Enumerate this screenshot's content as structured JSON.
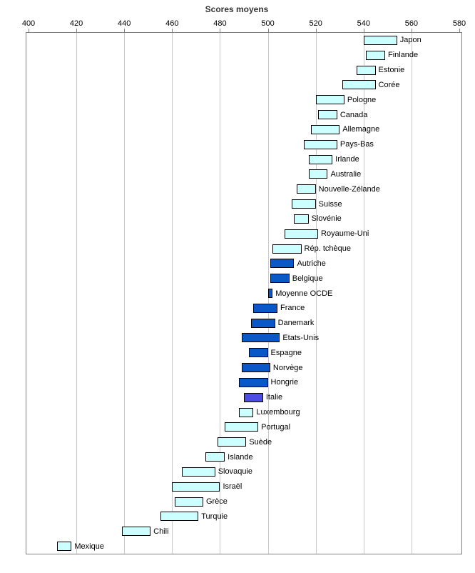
{
  "chart_data": {
    "type": "bar",
    "orientation": "horizontal-range",
    "title": "Scores moyens",
    "axis": {
      "position": "top",
      "min": 400,
      "max": 580,
      "tick_interval": 20,
      "ticks": [
        400,
        420,
        440,
        460,
        480,
        500,
        520,
        540,
        560,
        580
      ],
      "grid": true
    },
    "colors": {
      "light": "#ccffff",
      "dark": "#0a58c8",
      "italy": "#4d4de6",
      "bar_border": "#000000",
      "gridline": "#c9c9c9",
      "plot_border": "#7f7f7f"
    },
    "series": [
      {
        "label": "Japon",
        "mean": 547,
        "low": 540,
        "high": 554,
        "color": "light"
      },
      {
        "label": "Finlande",
        "mean": 545,
        "low": 541,
        "high": 549,
        "color": "light"
      },
      {
        "label": "Estonie",
        "mean": 541,
        "low": 537,
        "high": 545,
        "color": "light"
      },
      {
        "label": "Corée",
        "mean": 538,
        "low": 531,
        "high": 545,
        "color": "light"
      },
      {
        "label": "Pologne",
        "mean": 526,
        "low": 520,
        "high": 532,
        "color": "light"
      },
      {
        "label": "Canada",
        "mean": 525,
        "low": 521,
        "high": 529,
        "color": "light"
      },
      {
        "label": "Allemagne",
        "mean": 524,
        "low": 518,
        "high": 530,
        "color": "light"
      },
      {
        "label": "Pays-Bas",
        "mean": 522,
        "low": 515,
        "high": 529,
        "color": "light"
      },
      {
        "label": "Irlande",
        "mean": 522,
        "low": 517,
        "high": 527,
        "color": "light"
      },
      {
        "label": "Australie",
        "mean": 521,
        "low": 517,
        "high": 525,
        "color": "light"
      },
      {
        "label": "Nouvelle-Zélande",
        "mean": 516,
        "low": 512,
        "high": 520,
        "color": "light"
      },
      {
        "label": "Suisse",
        "mean": 515,
        "low": 510,
        "high": 520,
        "color": "light"
      },
      {
        "label": "Slovénie",
        "mean": 514,
        "low": 511,
        "high": 517,
        "color": "light"
      },
      {
        "label": "Royaume-Uni",
        "mean": 514,
        "low": 507,
        "high": 521,
        "color": "light"
      },
      {
        "label": "Rép. tchèque",
        "mean": 508,
        "low": 502,
        "high": 514,
        "color": "light"
      },
      {
        "label": "Autriche",
        "mean": 506,
        "low": 501,
        "high": 511,
        "color": "dark"
      },
      {
        "label": "Belgique",
        "mean": 505,
        "low": 501,
        "high": 509,
        "color": "dark"
      },
      {
        "label": "Moyenne OCDE",
        "mean": 501,
        "low": 500,
        "high": 502,
        "color": "dark"
      },
      {
        "label": "France",
        "mean": 499,
        "low": 494,
        "high": 504,
        "color": "dark"
      },
      {
        "label": "Danemark",
        "mean": 498,
        "low": 493,
        "high": 503,
        "color": "dark"
      },
      {
        "label": "Etats-Unis",
        "mean": 497,
        "low": 489,
        "high": 505,
        "color": "dark"
      },
      {
        "label": "Espagne",
        "mean": 496,
        "low": 492,
        "high": 500,
        "color": "dark"
      },
      {
        "label": "Norvège",
        "mean": 495,
        "low": 489,
        "high": 501,
        "color": "dark"
      },
      {
        "label": "Hongrie",
        "mean": 494,
        "low": 488,
        "high": 500,
        "color": "dark"
      },
      {
        "label": "Italie",
        "mean": 494,
        "low": 490,
        "high": 498,
        "color": "italy"
      },
      {
        "label": "Luxembourg",
        "mean": 491,
        "low": 488,
        "high": 494,
        "color": "light"
      },
      {
        "label": "Portugal",
        "mean": 489,
        "low": 482,
        "high": 496,
        "color": "light"
      },
      {
        "label": "Suède",
        "mean": 485,
        "low": 479,
        "high": 491,
        "color": "light"
      },
      {
        "label": "Islande",
        "mean": 478,
        "low": 474,
        "high": 482,
        "color": "light"
      },
      {
        "label": "Slovaquie",
        "mean": 471,
        "low": 464,
        "high": 478,
        "color": "light"
      },
      {
        "label": "Israël",
        "mean": 470,
        "low": 460,
        "high": 480,
        "color": "light"
      },
      {
        "label": "Grèce",
        "mean": 467,
        "low": 461,
        "high": 473,
        "color": "light"
      },
      {
        "label": "Turquie",
        "mean": 463,
        "low": 455,
        "high": 471,
        "color": "light"
      },
      {
        "label": "Chili",
        "mean": 445,
        "low": 439,
        "high": 451,
        "color": "light"
      },
      {
        "label": "Mexique",
        "mean": 415,
        "low": 412,
        "high": 418,
        "color": "light"
      }
    ]
  }
}
